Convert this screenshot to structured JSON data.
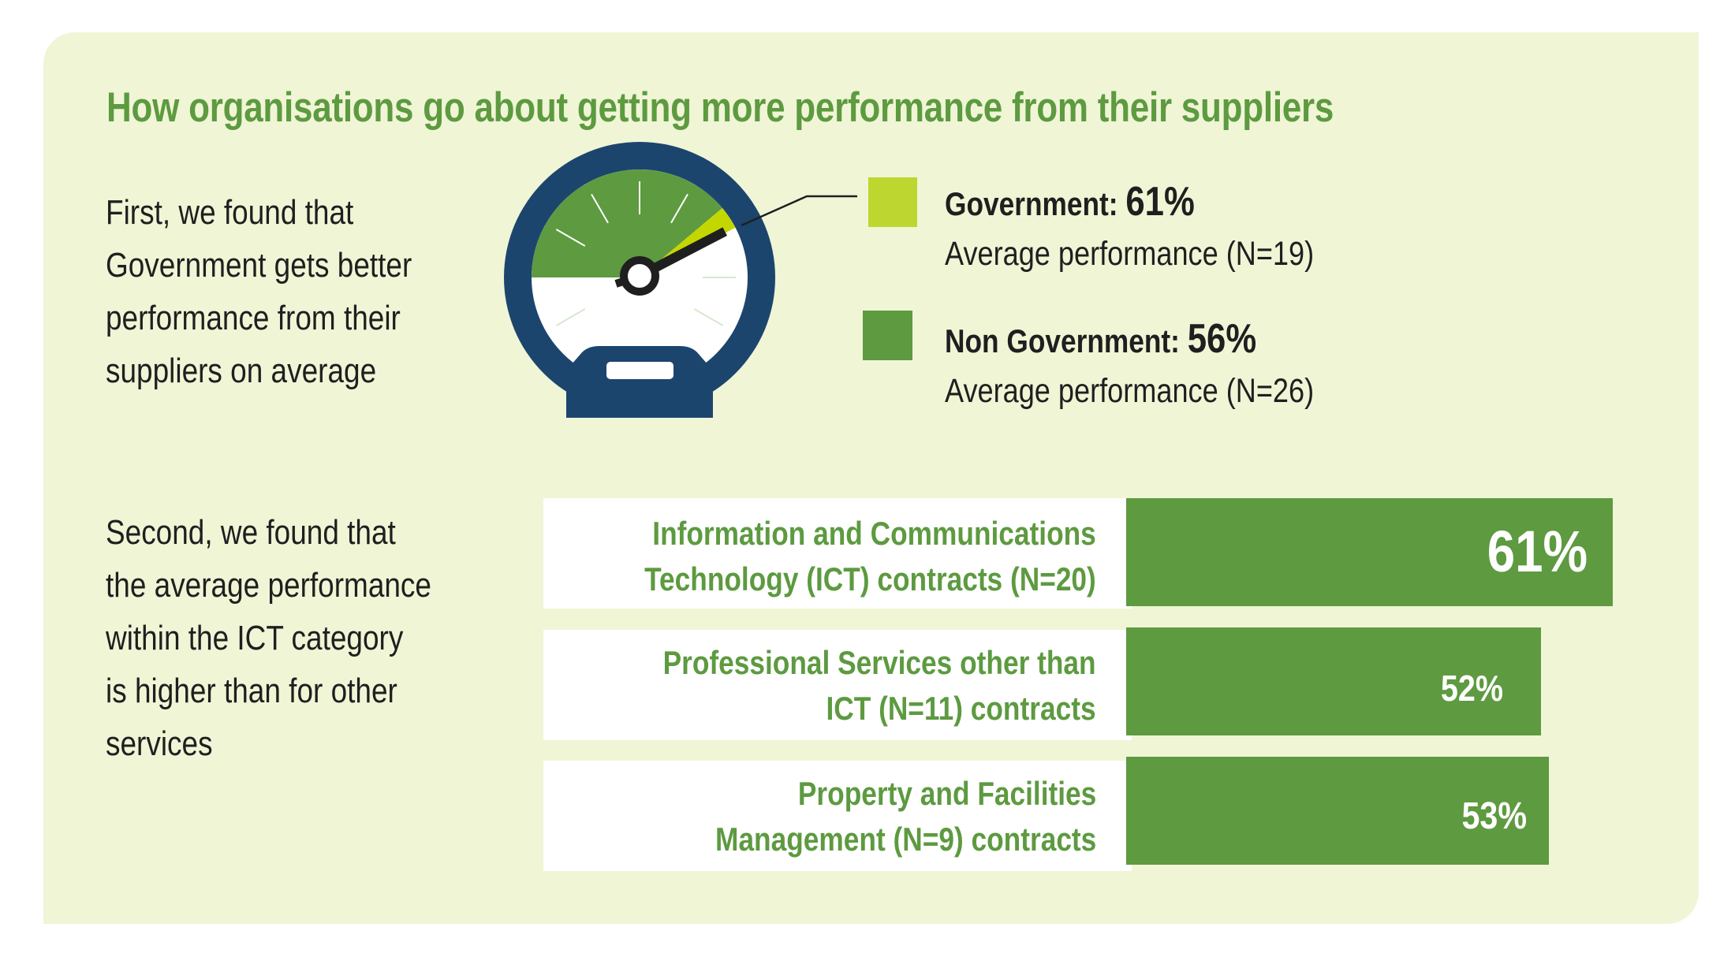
{
  "title": "How organisations go about getting more performance from their suppliers",
  "colors": {
    "panel_bg": "#f0f5d6",
    "accent_green": "#5e9a40",
    "government_yellow_green": "#bdd730",
    "gauge_navy": "#1c456e",
    "needle": "#1f1f1f"
  },
  "section1": {
    "paragraph_lines": [
      "First, we found that",
      "Government gets better",
      "performance from their",
      "suppliers on average"
    ]
  },
  "section2": {
    "paragraph_lines": [
      "Second, we found that",
      "the average performance",
      "within the ICT category",
      "is higher than for other",
      "services"
    ]
  },
  "icons": {
    "gauge": "speedometer-gauge-icon"
  },
  "chart_data": [
    {
      "type": "gauge",
      "title": "Average performance: Government vs Non Government",
      "series": [
        {
          "name": "Government",
          "label": "Government:",
          "value": 61,
          "value_label": "61%",
          "subtitle": "Average performance (N=19)",
          "n": 19,
          "color": "#bdd730"
        },
        {
          "name": "Non Government",
          "label": "Non Government:",
          "value": 56,
          "value_label": "56%",
          "subtitle": "Average performance (N=26)",
          "n": 26,
          "color": "#5e9a40"
        }
      ],
      "range": [
        0,
        100
      ]
    },
    {
      "type": "bar",
      "orientation": "horizontal",
      "categories": [
        "Information and Communications Technology (ICT) contracts (N=20)",
        "Professional Services other than ICT (N=11) contracts",
        "Property and Facilities Management (N=9) contracts"
      ],
      "category_lines": [
        [
          "Information and Communications",
          "Technology (ICT) contracts (N=20)"
        ],
        [
          "Professional Services other than",
          "ICT (N=11) contracts"
        ],
        [
          "Property and Facilities",
          "Management (N=9) contracts"
        ]
      ],
      "values": [
        61,
        52,
        53
      ],
      "value_labels": [
        "61%",
        "52%",
        "53%"
      ],
      "unit": "%",
      "xlabel": "",
      "ylabel": "",
      "xlim": [
        0,
        100
      ],
      "grid": false,
      "color": "#5e9a40"
    }
  ]
}
